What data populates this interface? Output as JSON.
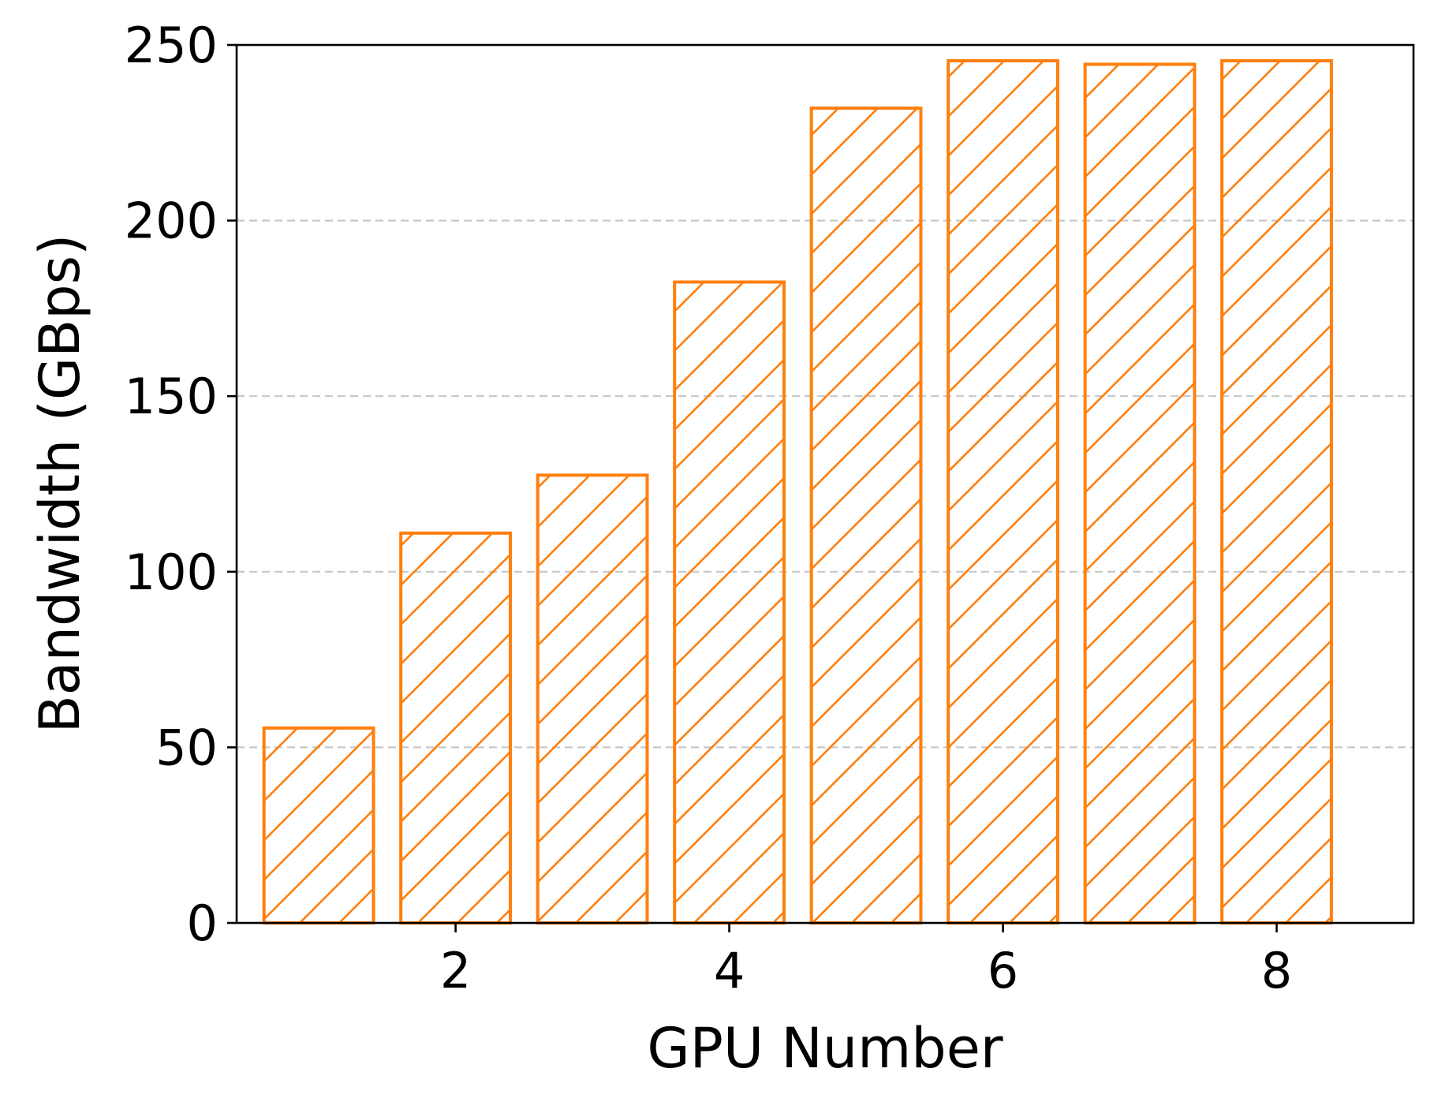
{
  "chart_data": {
    "type": "bar",
    "x": [
      1,
      2,
      3,
      4,
      5,
      6,
      7,
      8
    ],
    "values": [
      55.5,
      111,
      127.5,
      182.5,
      232,
      245.5,
      244.5,
      245.5
    ],
    "xlabel": "GPU Number",
    "ylabel": "Bandwidth (GBps)",
    "ylim": [
      0,
      250
    ],
    "xlim": [
      0.4,
      9.0
    ],
    "x_ticks": [
      2,
      4,
      6,
      8
    ],
    "y_ticks": [
      0,
      50,
      100,
      150,
      200,
      250
    ],
    "grid": "y-dashed",
    "bar_style": "hatched-outline",
    "color": "#ff7f0e",
    "legend": "none"
  }
}
